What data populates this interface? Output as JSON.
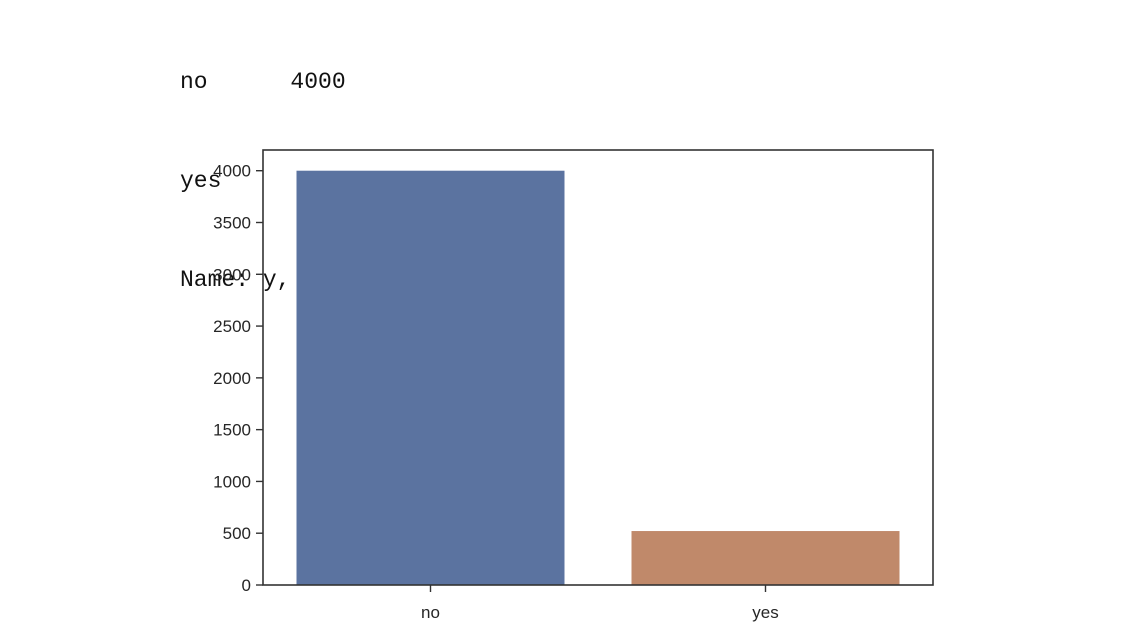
{
  "console_output": {
    "lines": [
      "no      4000",
      "yes      521",
      "Name: y, dtype: int64"
    ]
  },
  "chart_data": {
    "type": "bar",
    "categories": [
      "no",
      "yes"
    ],
    "values": [
      4000,
      521
    ],
    "title": "",
    "xlabel": "",
    "ylabel": "",
    "ylim": [
      0,
      4200
    ],
    "yticks": [
      0,
      500,
      1000,
      1500,
      2000,
      2500,
      3000,
      3500,
      4000
    ],
    "grid": false,
    "legend": "none",
    "colors": [
      "#5b73a0",
      "#c0896a"
    ]
  }
}
